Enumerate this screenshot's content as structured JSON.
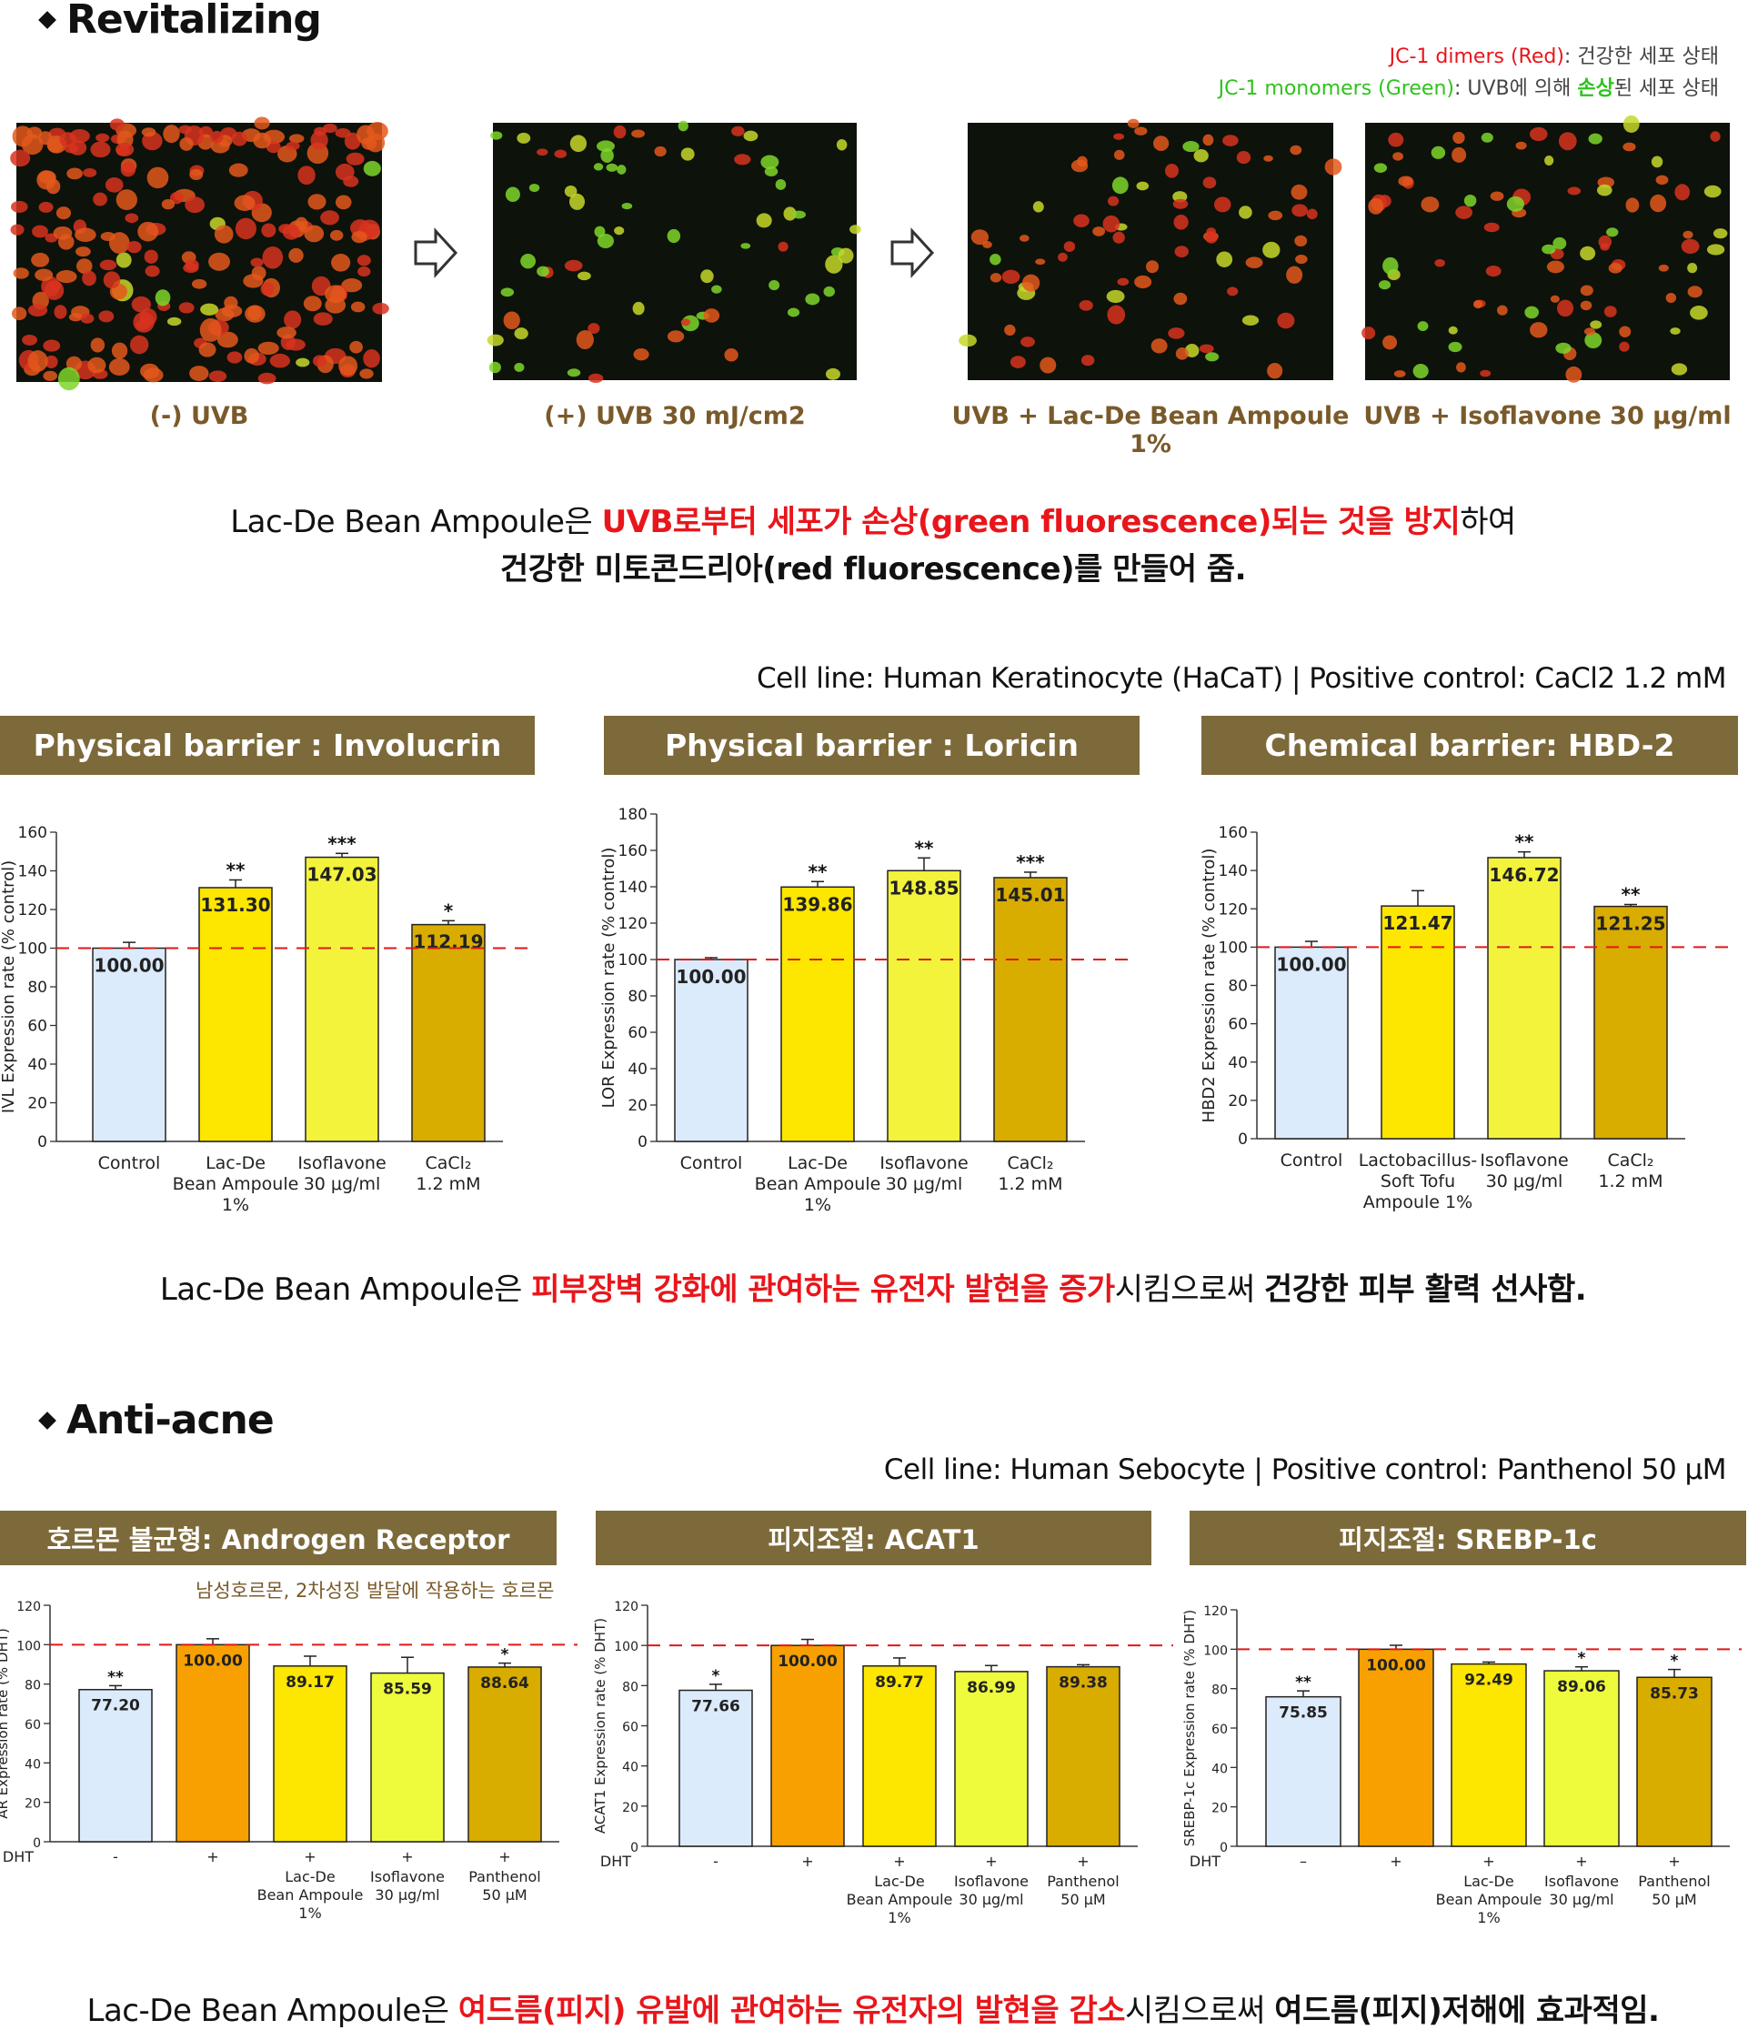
{
  "revitalizing": {
    "title": "Revitalizing",
    "legend_red_label": "JC-1 dimers (Red)",
    "legend_red_desc": ": 건강한 세포 상태",
    "legend_green_label": "JC-1 monomers (Green)",
    "legend_green_desc_pre": ": UVB에 의해 ",
    "legend_green_desc_em": "손상",
    "legend_green_desc_post": "된 세포 상태",
    "panels": [
      {
        "caption": "(-) UVB",
        "red_ratio": 0.95
      },
      {
        "caption": "(+) UVB 30 mJ/cm2",
        "red_ratio": 0.25
      },
      {
        "caption": "UVB +  Lac-De Bean Ampoule 1%",
        "red_ratio": 0.8
      },
      {
        "caption": "UVB + Isoflavone 30 μg/ml",
        "red_ratio": 0.6
      }
    ],
    "summary_line1_a": "Lac-De Bean Ampoule은 ",
    "summary_line1_red": "UVB로부터 세포가 손상(green fluorescence)되는 것을 방지",
    "summary_line1_b": "하여",
    "summary_line2": "건강한 미토콘드리아(red fluorescence)를 만들어 줌."
  },
  "barrier": {
    "cell_info": "Cell line: Human Keratinocyte (HaCaT)  |  Positive control: CaCl2 1.2 mM",
    "summary_a": "Lac-De Bean Ampoule은 ",
    "summary_red": "피부장벽 강화에 관여하는 유전자 발현을 증가",
    "summary_b": "시킴으로써 ",
    "summary_bold": "건강한 피부 활력 선사함."
  },
  "acne": {
    "title": "Anti-acne",
    "cell_info": "Cell line: Human Sebocyte  |  Positive control: Panthenol 50 μM",
    "note": "남성호르몬, 2차성징 발달에 작용하는 호르몬",
    "summary_a": "Lac-De Bean Ampoule은 ",
    "summary_red": "여드름(피지) 유발에 관여하는 유전자의 발현을 감소",
    "summary_b": "시킴으로써 ",
    "summary_bold": "여드름(피지)저해에 효과적임."
  },
  "chart_data": [
    {
      "type": "bar",
      "title": "Physical barrier : Involucrin",
      "ylabel": "IVL Expression rate (% control)",
      "ylim": [
        0,
        160
      ],
      "ytick_step": 20,
      "reference_line": 100,
      "categories": [
        [
          "Control"
        ],
        [
          "Lac-De",
          "Bean Ampoule",
          "1%"
        ],
        [
          "Isoflavone",
          "30 μg/ml"
        ],
        [
          "CaCl₂",
          "1.2 mM"
        ]
      ],
      "values": [
        100.0,
        131.3,
        147.03,
        112.19
      ],
      "value_labels": [
        "100.00",
        "131.30",
        "147.03",
        "112.19"
      ],
      "errors": [
        3,
        4,
        2,
        2
      ],
      "significance": [
        "",
        "**",
        "***",
        "*"
      ],
      "colors": [
        "#dcebfb",
        "#fde600",
        "#f3f33c",
        "#d9ac00"
      ],
      "dht_row": null
    },
    {
      "type": "bar",
      "title": "Physical barrier : Loricin",
      "ylabel": "LOR Expression rate (% control)",
      "ylim": [
        0,
        180
      ],
      "ytick_step": 20,
      "reference_line": 100,
      "categories": [
        [
          "Control"
        ],
        [
          "Lac-De",
          "Bean Ampoule",
          "1%"
        ],
        [
          "Isoflavone",
          "30 μg/ml"
        ],
        [
          "CaCl₂",
          "1.2 mM"
        ]
      ],
      "values": [
        100.0,
        139.86,
        148.85,
        145.01
      ],
      "value_labels": [
        "100.00",
        "139.86",
        "148.85",
        "145.01"
      ],
      "errors": [
        1,
        3,
        7,
        3
      ],
      "significance": [
        "",
        "**",
        "**",
        "***"
      ],
      "colors": [
        "#dcebfb",
        "#fde600",
        "#f3f33c",
        "#d9ac00"
      ],
      "dht_row": null
    },
    {
      "type": "bar",
      "title": "Chemical barrier: HBD-2",
      "ylabel": "HBD2 Expression rate (% control)",
      "ylim": [
        0,
        160
      ],
      "ytick_step": 20,
      "reference_line": 100,
      "categories": [
        [
          "Control"
        ],
        [
          "Lactobacillus-",
          "Soft Tofu",
          "Ampoule 1%"
        ],
        [
          "Isoflavone",
          "30 μg/ml"
        ],
        [
          "CaCl₂",
          "1.2 mM"
        ]
      ],
      "values": [
        100.0,
        121.47,
        146.72,
        121.25
      ],
      "value_labels": [
        "100.00",
        "121.47",
        "146.72",
        "121.25"
      ],
      "errors": [
        3,
        8,
        3,
        1
      ],
      "significance": [
        "",
        "",
        "**",
        "**"
      ],
      "colors": [
        "#dcebfb",
        "#fde600",
        "#f3f33c",
        "#d9ac00"
      ],
      "dht_row": null
    },
    {
      "type": "bar",
      "title": "호르몬 불균형: Androgen Receptor",
      "ylabel": "AR Expression rate (% DHT)",
      "ylim": [
        0,
        120
      ],
      "ytick_step": 20,
      "reference_line": 100,
      "categories": [
        [
          ""
        ],
        [
          ""
        ],
        [
          "Lac-De",
          "Bean Ampoule",
          "1%"
        ],
        [
          "Isoflavone",
          "30 μg/ml"
        ],
        [
          "Panthenol",
          "50 μM"
        ]
      ],
      "values": [
        77.2,
        100.0,
        89.17,
        85.59,
        88.64
      ],
      "value_labels": [
        "77.20",
        "100.00",
        "89.17",
        "85.59",
        "88.64"
      ],
      "errors": [
        2,
        3,
        5,
        8,
        2
      ],
      "significance": [
        "**",
        "",
        "",
        "",
        "*"
      ],
      "colors": [
        "#dcebfb",
        "#f7a000",
        "#fde600",
        "#eefb3c",
        "#d9ac00"
      ],
      "dht_label": "DHT",
      "dht_row": [
        "-",
        "+",
        "+",
        "+",
        "+"
      ]
    },
    {
      "type": "bar",
      "title": "피지조절: ACAT1",
      "ylabel": "ACAT1 Expression rate (% DHT)",
      "ylim": [
        0,
        120
      ],
      "ytick_step": 20,
      "reference_line": 100,
      "categories": [
        [
          ""
        ],
        [
          ""
        ],
        [
          "Lac-De",
          "Bean Ampoule",
          "1%"
        ],
        [
          "Isoflavone",
          "30 μg/ml"
        ],
        [
          "Panthenol",
          "50 μM"
        ]
      ],
      "values": [
        77.66,
        100.0,
        89.77,
        86.99,
        89.38
      ],
      "value_labels": [
        "77.66",
        "100.00",
        "89.77",
        "86.99",
        "89.38"
      ],
      "errors": [
        3,
        3,
        4,
        3,
        1
      ],
      "significance": [
        "*",
        "",
        "",
        "",
        ""
      ],
      "colors": [
        "#dcebfb",
        "#f7a000",
        "#fde600",
        "#eefb3c",
        "#d9ac00"
      ],
      "dht_label": "DHT",
      "dht_row": [
        "-",
        "+",
        "+",
        "+",
        "+"
      ]
    },
    {
      "type": "bar",
      "title": "피지조절: SREBP-1c",
      "ylabel": "SREBP-1c Expression rate (% DHT)",
      "ylim": [
        0,
        120
      ],
      "ytick_step": 20,
      "reference_line": 100,
      "categories": [
        [
          ""
        ],
        [
          ""
        ],
        [
          "Lac-De",
          "Bean Ampoule",
          "1%"
        ],
        [
          "Isoflavone",
          "30 μg/ml"
        ],
        [
          "Panthenol",
          "50 μM"
        ]
      ],
      "values": [
        75.85,
        100.0,
        92.49,
        89.06,
        85.73
      ],
      "value_labels": [
        "75.85",
        "100.00",
        "92.49",
        "89.06",
        "85.73"
      ],
      "errors": [
        3,
        2,
        1,
        2,
        4
      ],
      "significance": [
        "**",
        "",
        "",
        "*",
        "*"
      ],
      "colors": [
        "#dcebfb",
        "#f7a000",
        "#fde600",
        "#eefb3c",
        "#d9ac00"
      ],
      "dht_label": "DHT",
      "dht_row": [
        "–",
        "+",
        "+",
        "+",
        "+"
      ]
    }
  ]
}
